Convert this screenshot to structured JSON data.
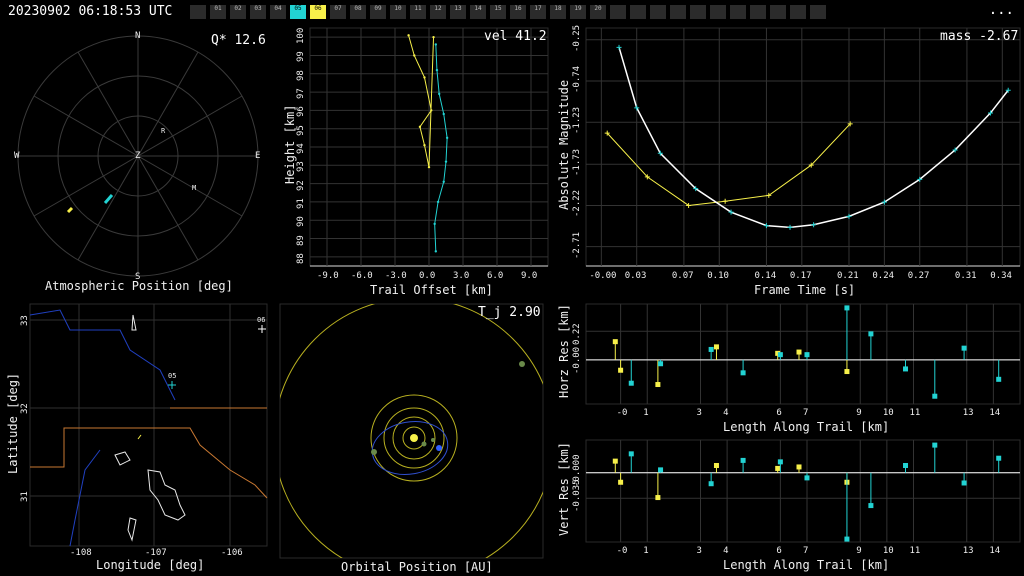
{
  "header": {
    "timestamp": "20230902 06:18:53 UTC",
    "menu_label": "...",
    "stations": [
      {
        "label": "",
        "state": "off"
      },
      {
        "label": "01",
        "state": "off"
      },
      {
        "label": "02",
        "state": "off"
      },
      {
        "label": "03",
        "state": "off"
      },
      {
        "label": "04",
        "state": "off"
      },
      {
        "label": "05",
        "state": "cyan"
      },
      {
        "label": "06",
        "state": "yellow"
      },
      {
        "label": "07",
        "state": "off"
      },
      {
        "label": "08",
        "state": "off"
      },
      {
        "label": "09",
        "state": "off"
      },
      {
        "label": "10",
        "state": "off"
      },
      {
        "label": "11",
        "state": "off"
      },
      {
        "label": "12",
        "state": "off"
      },
      {
        "label": "13",
        "state": "off"
      },
      {
        "label": "14",
        "state": "off"
      },
      {
        "label": "15",
        "state": "off"
      },
      {
        "label": "16",
        "state": "off"
      },
      {
        "label": "17",
        "state": "off"
      },
      {
        "label": "18",
        "state": "off"
      },
      {
        "label": "19",
        "state": "off"
      },
      {
        "label": "20",
        "state": "off"
      },
      {
        "label": "",
        "state": "off"
      },
      {
        "label": "",
        "state": "off"
      },
      {
        "label": "",
        "state": "off"
      },
      {
        "label": "",
        "state": "off"
      },
      {
        "label": "",
        "state": "off"
      },
      {
        "label": "",
        "state": "off"
      },
      {
        "label": "",
        "state": "off"
      },
      {
        "label": "",
        "state": "off"
      },
      {
        "label": "",
        "state": "off"
      },
      {
        "label": "",
        "state": "off"
      },
      {
        "label": "",
        "state": "off"
      }
    ]
  },
  "colors": {
    "cyan": "#22d3d3",
    "yellow": "#f7f04a",
    "grid": "#3a3a3a",
    "white": "#ffffff",
    "orange": "#c87832",
    "blue": "#2040c0"
  },
  "sky": {
    "title": "Atmospheric Position [deg]",
    "readout": "Q* 12.6",
    "compass": {
      "n": "N",
      "s": "S",
      "e": "E",
      "w": "W",
      "z": "Z"
    },
    "markers": [
      {
        "label": "R"
      },
      {
        "label": "M"
      }
    ]
  },
  "trail": {
    "xlabel": "Trail Offset [km]",
    "ylabel": "Height [km]",
    "readout": "vel 41.2",
    "xticks": [
      "-9.0",
      "-6.0",
      "-3.0",
      "0.0",
      "3.0",
      "6.0",
      "9.0"
    ],
    "yticks": [
      "88",
      "89",
      "90",
      "91",
      "92",
      "93",
      "94",
      "95",
      "96",
      "97",
      "98",
      "99",
      "100"
    ]
  },
  "lightcurve": {
    "xlabel": "Frame Time [s]",
    "ylabel": "Absolute Magnitude",
    "readout": "mass -2.67",
    "xticks": [
      "-0.00",
      "0.03",
      "0.07",
      "0.10",
      "0.14",
      "0.17",
      "0.21",
      "0.24",
      "0.27",
      "0.31",
      "0.34"
    ],
    "yticks": [
      "-2.71",
      "-2.22",
      "-1.73",
      "-1.23",
      "-0.74",
      "-0.25"
    ]
  },
  "map": {
    "xlabel": "Longitude [deg]",
    "ylabel": "Latitude [deg]",
    "xticks": [
      "-108",
      "-107",
      "-106"
    ],
    "yticks": [
      "33",
      "32",
      "31"
    ],
    "stations": [
      {
        "label": "05"
      },
      {
        "label": "06"
      }
    ]
  },
  "orbit": {
    "xlabel": "Orbital Position [AU]",
    "readout": "T_j 2.90"
  },
  "horz": {
    "xlabel": "Length Along Trail [km]",
    "ylabel": "Horz Res [km]",
    "xticks": [
      "-0",
      "1",
      "3",
      "4",
      "6",
      "7",
      "9",
      "10",
      "11",
      "13",
      "14"
    ],
    "yticks": [
      "0.22",
      "-0.00"
    ]
  },
  "vert": {
    "xlabel": "Length Along Trail [km]",
    "ylabel": "Vert Res [km]",
    "xticks": [
      "-0",
      "1",
      "3",
      "4",
      "6",
      "7",
      "9",
      "10",
      "11",
      "13",
      "14"
    ],
    "yticks": [
      "-0.000",
      "-0.035"
    ]
  },
  "chart_data": [
    {
      "type": "line",
      "panel": "trail",
      "xlabel": "Trail Offset [km]",
      "ylabel": "Height [km]",
      "xlim": [
        -10.5,
        10.5
      ],
      "ylim": [
        87.5,
        100.5
      ],
      "series": [
        {
          "color": "yellow",
          "x": [
            -1.8,
            -1.3,
            -0.4,
            0.2,
            -0.8,
            -0.4,
            0.0,
            0.4
          ],
          "y": [
            100.1,
            99.0,
            97.8,
            96.0,
            95.1,
            94.1,
            92.9,
            100.0
          ]
        },
        {
          "color": "cyan",
          "x": [
            0.6,
            0.7,
            0.9,
            1.3,
            1.6,
            1.5,
            1.3,
            0.8,
            0.5,
            0.6
          ],
          "y": [
            99.6,
            98.2,
            96.9,
            95.8,
            94.5,
            93.2,
            92.1,
            91.0,
            89.8,
            88.3
          ]
        }
      ]
    },
    {
      "type": "line",
      "panel": "lightcurve",
      "xlabel": "Frame Time [s]",
      "ylabel": "Absolute Magnitude",
      "xlim": [
        -0.013,
        0.355
      ],
      "ylim": [
        -2.94,
        -0.11
      ],
      "series": [
        {
          "color": "yellow",
          "x": [
            0.005,
            0.039,
            0.074,
            0.105,
            0.142,
            0.178,
            0.211
          ],
          "y": [
            -1.36,
            -1.88,
            -2.22,
            -2.17,
            -2.1,
            -1.74,
            -1.25
          ]
        },
        {
          "color": "cyan",
          "x": [
            0.015,
            0.03,
            0.05,
            0.08,
            0.11,
            0.14,
            0.16,
            0.18,
            0.21,
            0.24,
            0.27,
            0.3,
            0.33,
            0.345
          ],
          "y": [
            -0.34,
            -1.06,
            -1.6,
            -2.02,
            -2.3,
            -2.46,
            -2.48,
            -2.45,
            -2.35,
            -2.18,
            -1.91,
            -1.56,
            -1.12,
            -0.85
          ]
        }
      ]
    },
    {
      "type": "scatter",
      "panel": "horz",
      "xlabel": "Length Along Trail [km]",
      "ylabel": "Horz Res [km]",
      "xlim": [
        -1.3,
        15.0
      ],
      "ylim": [
        -0.34,
        0.43
      ],
      "series": [
        {
          "color": "yellow",
          "x": [
            -0.2,
            0.0,
            1.4,
            3.6,
            5.9,
            6.7,
            8.5
          ],
          "y": [
            0.14,
            -0.08,
            -0.19,
            0.1,
            0.05,
            0.06,
            -0.09
          ]
        },
        {
          "color": "cyan",
          "x": [
            0.4,
            1.5,
            3.4,
            4.6,
            6.0,
            7.0,
            8.5,
            9.4,
            10.7,
            11.8,
            12.9,
            14.2
          ],
          "y": [
            -0.18,
            -0.03,
            0.08,
            -0.1,
            0.04,
            0.04,
            0.4,
            0.2,
            -0.07,
            -0.28,
            0.09,
            -0.15
          ]
        }
      ]
    },
    {
      "type": "scatter",
      "panel": "vert",
      "xlabel": "Length Along Trail [km]",
      "ylabel": "Vert Res [km]",
      "xlim": [
        -1.3,
        15.0
      ],
      "ylim": [
        -0.095,
        0.045
      ],
      "series": [
        {
          "color": "yellow",
          "x": [
            -0.2,
            0.0,
            1.4,
            3.6,
            5.9,
            6.7,
            8.5
          ],
          "y": [
            0.016,
            -0.013,
            -0.034,
            0.01,
            0.006,
            0.008,
            -0.013
          ]
        },
        {
          "color": "cyan",
          "x": [
            0.4,
            1.5,
            3.4,
            4.6,
            6.0,
            7.0,
            8.5,
            9.4,
            10.7,
            11.8,
            12.9,
            14.2
          ],
          "y": [
            0.026,
            0.004,
            -0.015,
            0.017,
            0.015,
            -0.007,
            -0.091,
            -0.045,
            0.01,
            0.038,
            -0.014,
            0.02
          ]
        }
      ]
    }
  ]
}
